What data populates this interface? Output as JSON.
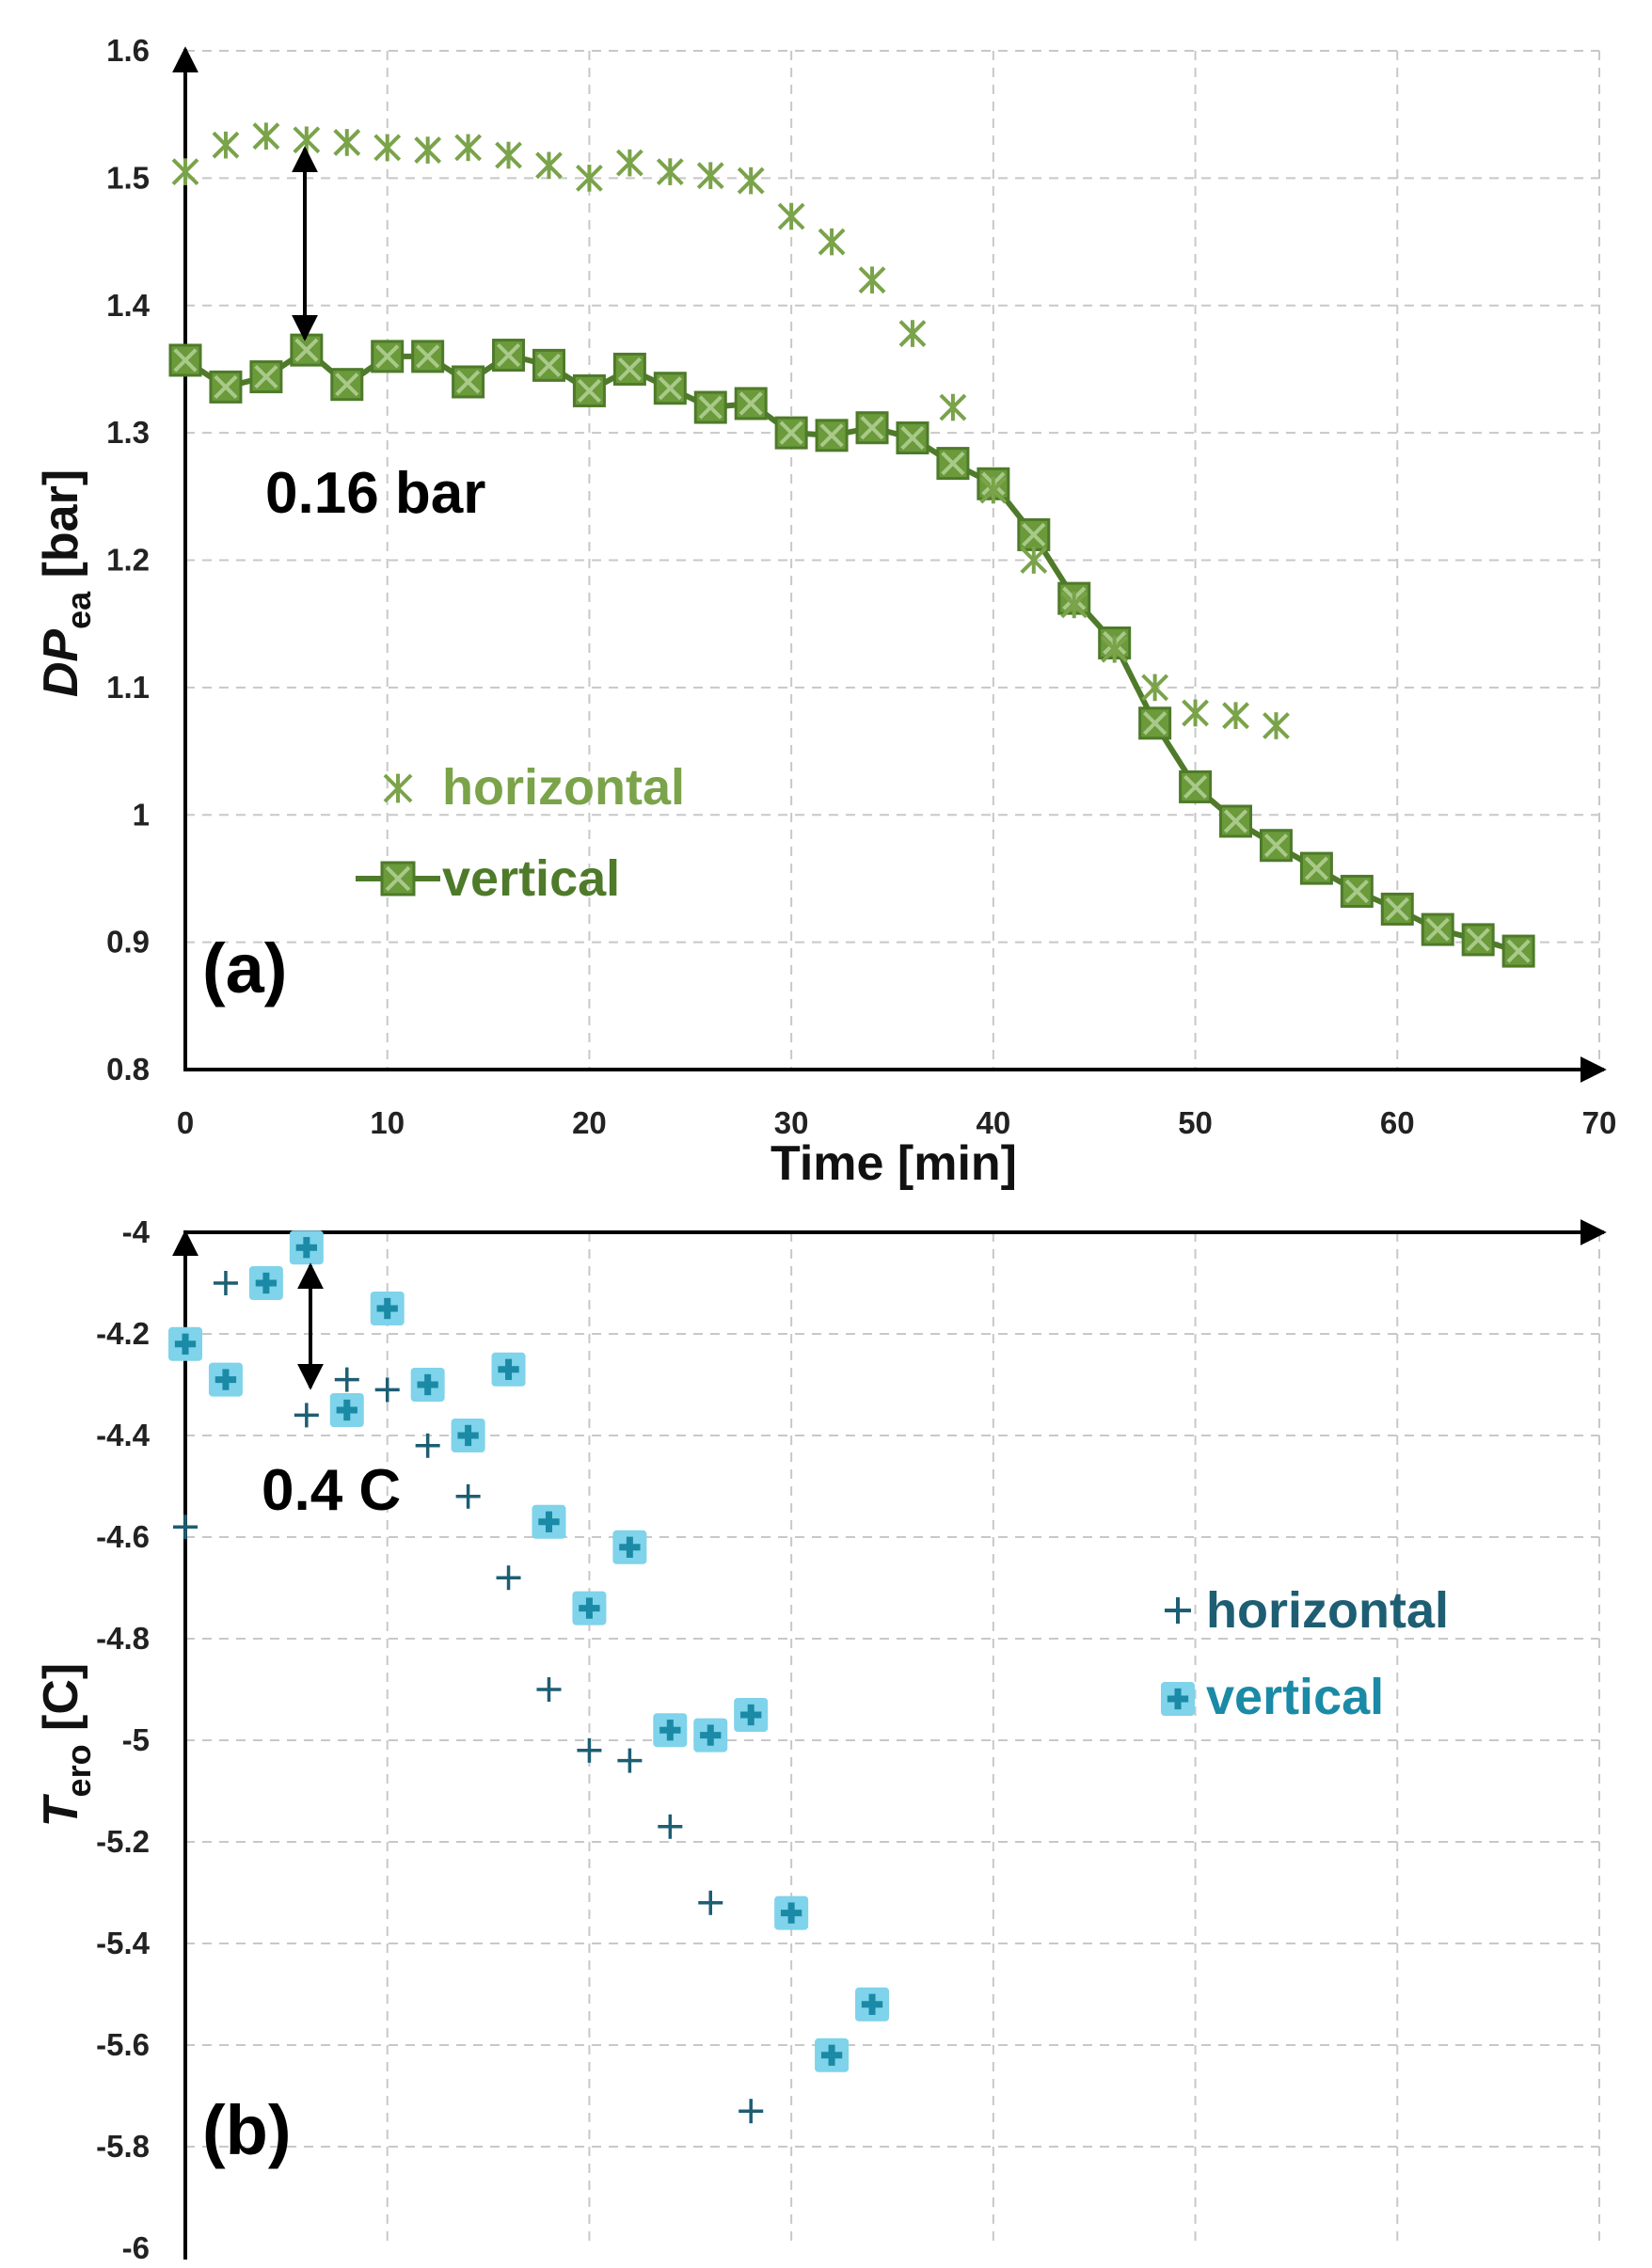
{
  "chart_data": [
    {
      "type": "line",
      "panel_label": "(a)",
      "xlabel": "Time [min]",
      "ylabel_main": "DP",
      "ylabel_sub": "ea",
      "ylabel_unit": " [bar]",
      "xlim": [
        0,
        70
      ],
      "ylim": [
        0.8,
        1.6
      ],
      "xticks": [
        "0",
        "10",
        "20",
        "30",
        "40",
        "50",
        "60",
        "70"
      ],
      "yticks": [
        "0.8",
        "0.9",
        "1",
        "1.1",
        "1.2",
        "1.3",
        "1.4",
        "1.5",
        "1.6"
      ],
      "grid": true,
      "legend_position": "center-left",
      "annotation": "0.16 bar",
      "colors": {
        "horizontal": "#7aa34a",
        "vertical": "#4e7a2a",
        "vertical_fill": "#6a9a3a"
      },
      "series": [
        {
          "name": "horizontal",
          "marker": "asterisk",
          "x": [
            0,
            2,
            4,
            6,
            8,
            10,
            12,
            14,
            16,
            18,
            20,
            22,
            24,
            26,
            28,
            30,
            32,
            34,
            36,
            38,
            40,
            42,
            44,
            46,
            48,
            50,
            52,
            54
          ],
          "y": [
            1.505,
            1.526,
            1.533,
            1.53,
            1.528,
            1.524,
            1.522,
            1.524,
            1.518,
            1.51,
            1.5,
            1.512,
            1.505,
            1.502,
            1.498,
            1.47,
            1.45,
            1.42,
            1.378,
            1.32,
            1.255,
            1.2,
            1.165,
            1.13,
            1.1,
            1.08,
            1.078,
            1.07
          ]
        },
        {
          "name": "vertical",
          "marker": "square-line",
          "x": [
            0,
            2,
            4,
            6,
            8,
            10,
            12,
            14,
            16,
            18,
            20,
            22,
            24,
            26,
            28,
            30,
            32,
            34,
            36,
            38,
            40,
            42,
            44,
            46,
            48,
            50,
            52,
            54,
            56,
            58,
            60,
            62,
            64,
            66
          ],
          "y": [
            1.357,
            1.336,
            1.344,
            1.365,
            1.338,
            1.36,
            1.36,
            1.34,
            1.361,
            1.353,
            1.333,
            1.35,
            1.335,
            1.32,
            1.323,
            1.3,
            1.298,
            1.304,
            1.296,
            1.276,
            1.26,
            1.22,
            1.17,
            1.135,
            1.072,
            1.022,
            0.995,
            0.976,
            0.958,
            0.94,
            0.926,
            0.91,
            0.902,
            0.893
          ]
        }
      ]
    },
    {
      "type": "scatter",
      "panel_label": "(b)",
      "ylabel_main": "T",
      "ylabel_sub": "ero",
      "ylabel_unit": " [C]",
      "xlim": [
        0,
        70
      ],
      "ylim": [
        -6,
        -4
      ],
      "yticks": [
        "-6",
        "-5.8",
        "-5.6",
        "-5.4",
        "-5.2",
        "-5",
        "-4.8",
        "-4.6",
        "-4.4",
        "-4.2",
        "-4"
      ],
      "grid": true,
      "legend_position": "right",
      "annotation": "0.4 C",
      "colors": {
        "horizontal": "#1d5e73",
        "vertical_edge": "#7fd3ea",
        "vertical_fill": "#1a8aa6"
      },
      "series": [
        {
          "name": "horizontal",
          "marker": "plus",
          "x": [
            0,
            2,
            6,
            8,
            10,
            12,
            14,
            16,
            18,
            20,
            22,
            24,
            26,
            28
          ],
          "y": [
            -4.58,
            -4.1,
            -4.36,
            -4.29,
            -4.31,
            -4.42,
            -4.52,
            -4.68,
            -4.9,
            -5.02,
            -5.04,
            -5.17,
            -5.32,
            -5.73
          ]
        },
        {
          "name": "vertical",
          "marker": "plus-square",
          "x": [
            0,
            2,
            4,
            6,
            8,
            10,
            12,
            14,
            16,
            18,
            20,
            22,
            24,
            26,
            28,
            30,
            32,
            34
          ],
          "y": [
            -4.22,
            -4.29,
            -4.1,
            -4.03,
            -4.35,
            -4.15,
            -4.3,
            -4.4,
            -4.27,
            -4.57,
            -4.74,
            -4.62,
            -4.98,
            -4.99,
            -4.95,
            -5.34,
            -5.62,
            -5.52
          ]
        }
      ]
    }
  ]
}
